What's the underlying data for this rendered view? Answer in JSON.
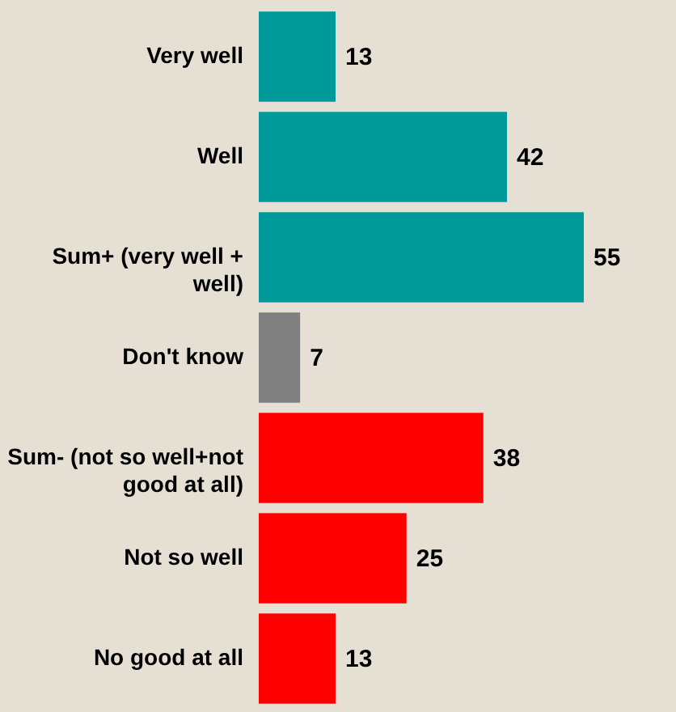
{
  "chart_data": {
    "type": "bar",
    "orientation": "horizontal",
    "categories": [
      "Very well",
      "Well",
      "Sum+ (very well + well)",
      "Don't know",
      "Sum- (not so well+not good at all)",
      "Not so well",
      "No good at all"
    ],
    "values": [
      13,
      42,
      55,
      7,
      38,
      25,
      13
    ],
    "colors": [
      "#009999",
      "#009999",
      "#009999",
      "#808080",
      "#ff0000",
      "#ff0000",
      "#ff0000"
    ],
    "data_labels": true
  }
}
